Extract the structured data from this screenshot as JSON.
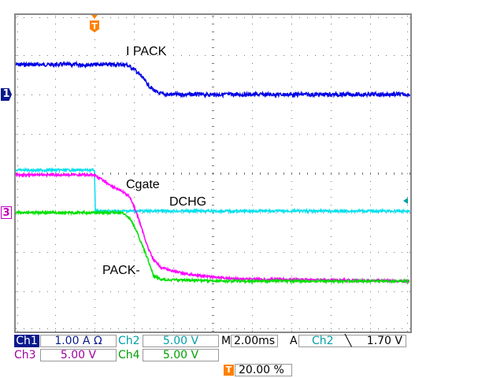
{
  "chart_data": {
    "type": "line",
    "xlabel": "",
    "ylabel": "",
    "xlim_ms": [
      -4,
      16
    ],
    "ylim_div": [
      -4,
      4
    ],
    "grid": true,
    "series": [
      {
        "channel": "Ch1",
        "color": "#0000e6",
        "points": [
          [
            -4,
            2.76
          ],
          [
            1.6,
            2.76
          ],
          [
            2.0,
            2.65
          ],
          [
            2.4,
            2.45
          ],
          [
            2.8,
            2.2
          ],
          [
            3.2,
            2.04
          ],
          [
            3.6,
            2.0
          ],
          [
            16,
            2.0
          ]
        ]
      },
      {
        "channel": "Ch2",
        "color": "#00e0ee",
        "points": [
          [
            -4,
            0.08
          ],
          [
            0,
            0.08
          ],
          [
            0.04,
            -0.96
          ],
          [
            16,
            -0.96
          ]
        ]
      },
      {
        "channel": "Ch3",
        "color": "#ff00ff",
        "points": [
          [
            -4,
            -0.04
          ],
          [
            0,
            -0.04
          ],
          [
            0.8,
            -0.3
          ],
          [
            1.4,
            -0.46
          ],
          [
            1.8,
            -0.6
          ],
          [
            2.0,
            -0.84
          ],
          [
            2.2,
            -1.1
          ],
          [
            2.4,
            -1.4
          ],
          [
            2.72,
            -1.9
          ],
          [
            3.0,
            -2.2
          ],
          [
            3.4,
            -2.4
          ],
          [
            4.4,
            -2.54
          ],
          [
            6.0,
            -2.64
          ],
          [
            7.2,
            -2.68
          ],
          [
            16,
            -2.74
          ]
        ]
      },
      {
        "channel": "Ch4",
        "color": "#00e000",
        "points": [
          [
            -4,
            -1.0
          ],
          [
            1.4,
            -1.0
          ],
          [
            1.8,
            -1.16
          ],
          [
            2.08,
            -1.4
          ],
          [
            2.4,
            -1.8
          ],
          [
            2.72,
            -2.2
          ],
          [
            3.0,
            -2.6
          ],
          [
            3.4,
            -2.7
          ],
          [
            7.2,
            -2.74
          ],
          [
            16,
            -2.74
          ]
        ]
      }
    ],
    "annotations": {
      "ipack": "I PACK",
      "cgate": "Cgate",
      "dchg": "DCHG",
      "pack": "PACK-"
    }
  },
  "markers": {
    "ch1": "1",
    "ch3": "3",
    "trigger": "T"
  },
  "status": {
    "ch1_label": "Ch1",
    "ch1_scale": "1.00 A Ω",
    "ch2_label": "Ch2",
    "ch2_scale": "5.00 V",
    "ch3_label": "Ch3",
    "ch3_scale": "5.00 V",
    "ch4_label": "Ch4",
    "ch4_scale": "5.00 V",
    "m_label": "M",
    "timebase": "2.00ms",
    "a_label": "A",
    "trig_source": "Ch2",
    "trig_slope": "╲",
    "trig_level": "1.70 V",
    "trig_pos": "20.00 %"
  },
  "colors": {
    "ch1": "#0000e6",
    "ch2": "#00a0a8",
    "ch3": "#a000a0",
    "ch4": "#00a000",
    "trigger": "#ff8000"
  }
}
